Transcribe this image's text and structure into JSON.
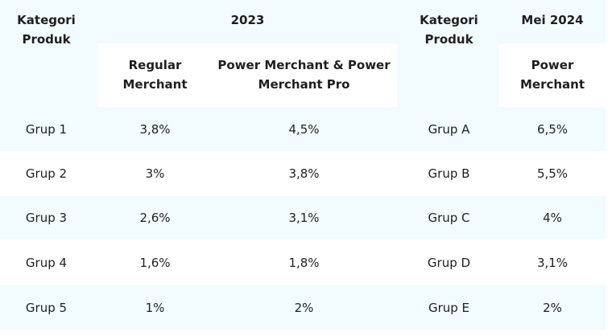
{
  "header": {
    "col1": "Kategori Produk",
    "group2023": "2023",
    "regular": "Regular Merchant",
    "pm2023": "Power Merchant & Power Merchant Pro",
    "col4": "Kategori Produk",
    "group2024": "Mei 2024",
    "pm2024": "Power Merchant"
  },
  "rows": [
    {
      "cat": "Grup 1",
      "regular": "3,8%",
      "pm2023": "4,5%",
      "cat2024": "Grup A",
      "pm2024": "6,5%"
    },
    {
      "cat": "Grup 2",
      "regular": "3%",
      "pm2023": "3,8%",
      "cat2024": "Grup B",
      "pm2024": "5,5%"
    },
    {
      "cat": "Grup 3",
      "regular": "2,6%",
      "pm2023": "3,1%",
      "cat2024": "Grup C",
      "pm2024": "4%"
    },
    {
      "cat": "Grup 4",
      "regular": "1,6%",
      "pm2023": "1,8%",
      "cat2024": "Grup D",
      "pm2024": "3,1%"
    },
    {
      "cat": "Grup 5",
      "regular": "1%",
      "pm2023": "2%",
      "cat2024": "Grup E",
      "pm2024": "2%"
    }
  ]
}
